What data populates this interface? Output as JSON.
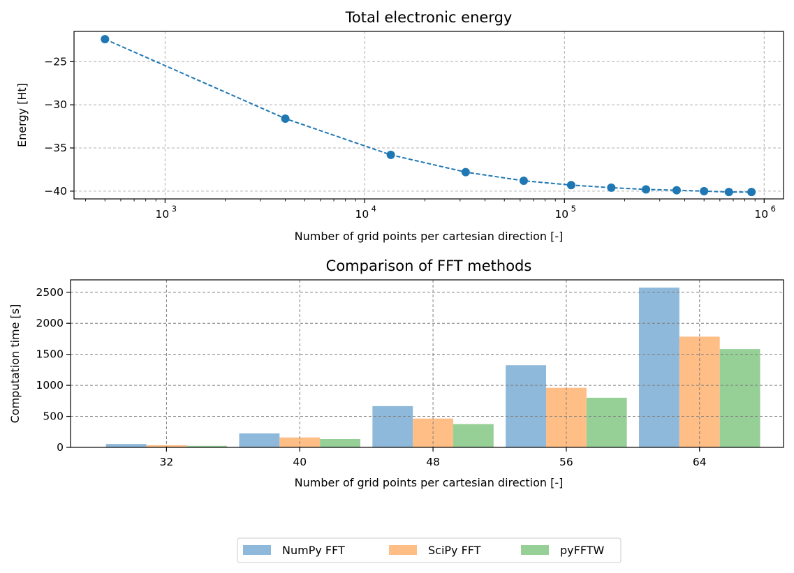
{
  "chart_data": [
    {
      "type": "line",
      "title": "Total electronic energy",
      "xlabel": "Number of grid points per cartesian direction [-]",
      "ylabel": "Energy [Ht]",
      "xscale": "log",
      "xlim": [
        350,
        1250000
      ],
      "ylim": [
        -40.9,
        -21.5
      ],
      "x_ticks": [
        1000,
        10000,
        100000,
        1000000
      ],
      "x_tick_labels": [
        {
          "base": "10",
          "exp": "3"
        },
        {
          "base": "10",
          "exp": "4"
        },
        {
          "base": "10",
          "exp": "5"
        },
        {
          "base": "10",
          "exp": "6"
        }
      ],
      "y_ticks": [
        -25,
        -30,
        -35,
        -40
      ],
      "y_tick_labels": [
        "−25",
        "−30",
        "−35",
        "−40"
      ],
      "grid": true,
      "line_style": "dashed",
      "marker": "circle",
      "color": "#1f77b4",
      "x": [
        500,
        4000,
        13500,
        32000,
        62500,
        108000,
        171500,
        256000,
        364500,
        500000,
        665500,
        864000
      ],
      "y": [
        -22.4,
        -31.6,
        -35.8,
        -37.8,
        -38.8,
        -39.3,
        -39.6,
        -39.8,
        -39.9,
        -40.0,
        -40.1,
        -40.1
      ]
    },
    {
      "type": "bar",
      "title": "Comparison of FFT methods",
      "xlabel": "Number of grid points per cartesian direction [-]",
      "ylabel": "Computation time [s]",
      "categories": [
        "32",
        "40",
        "48",
        "56",
        "64"
      ],
      "ylim": [
        0,
        2700
      ],
      "y_ticks": [
        0,
        500,
        1000,
        1500,
        2000,
        2500
      ],
      "y_tick_labels": [
        "0",
        "500",
        "1000",
        "1500",
        "2000",
        "2500"
      ],
      "grid": true,
      "legend_position": "bottom-center",
      "series": [
        {
          "name": "NumPy FFT",
          "color": "#8fb9da",
          "values": [
            55,
            225,
            665,
            1325,
            2575
          ]
        },
        {
          "name": "SciPy FFT",
          "color": "#ffbe86",
          "values": [
            35,
            160,
            465,
            960,
            1785
          ]
        },
        {
          "name": "pyFFTW",
          "color": "#96d096",
          "values": [
            25,
            135,
            375,
            800,
            1585
          ]
        }
      ]
    }
  ]
}
